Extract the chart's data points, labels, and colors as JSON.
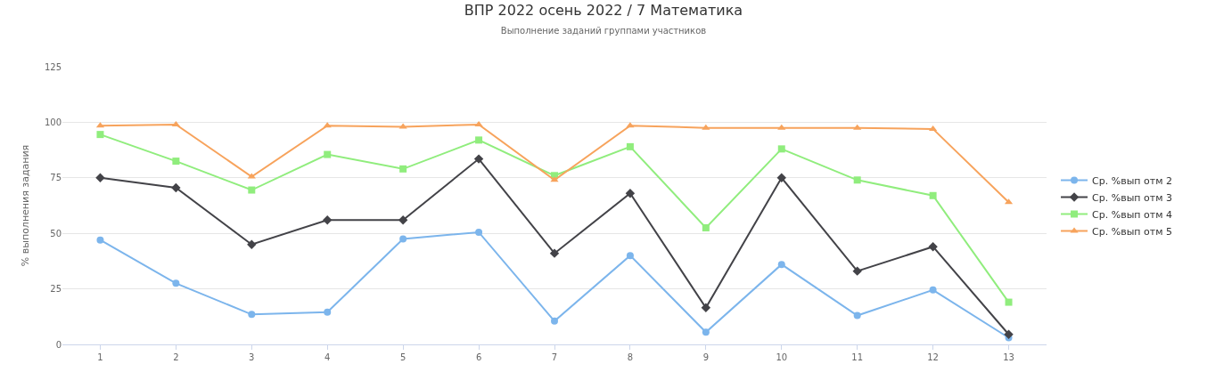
{
  "chart_data": {
    "type": "line",
    "title": "ВПР 2022 осень 2022 / 7 Математика",
    "subtitle": "Выполнение заданий группами участников",
    "ylabel": "% выполнения задания",
    "categories": [
      "1",
      "2",
      "3",
      "4",
      "5",
      "6",
      "7",
      "8",
      "9",
      "10",
      "11",
      "12",
      "13"
    ],
    "series": [
      {
        "name": "Ср. %вып отм 2",
        "color": "#7cb5ec",
        "marker": "circle",
        "values": [
          47,
          27.5,
          13.5,
          14.5,
          47.5,
          50.5,
          10.5,
          40,
          5.5,
          36,
          13,
          24.5,
          3
        ]
      },
      {
        "name": "Ср. %вып отм 3",
        "color": "#434348",
        "marker": "diamond",
        "values": [
          75,
          70.5,
          45,
          56,
          56,
          83.5,
          41,
          68,
          16.5,
          75,
          33,
          44,
          4.5
        ]
      },
      {
        "name": "Ср. %вып отм 4",
        "color": "#90ed7d",
        "marker": "square",
        "values": [
          94.5,
          82.5,
          69.5,
          85.5,
          79,
          92,
          76,
          89,
          52.5,
          88,
          74,
          67,
          19
        ]
      },
      {
        "name": "Ср. %вып отм 5",
        "color": "#f7a35c",
        "marker": "triangle",
        "values": [
          98.5,
          99,
          75.5,
          98.5,
          98,
          99,
          74,
          98.5,
          97.5,
          97.5,
          97.5,
          97,
          64
        ]
      }
    ],
    "ylim": [
      0,
      125
    ],
    "yticks": [
      0,
      25,
      50,
      75,
      100,
      125
    ],
    "grid": "y",
    "legend": "right"
  }
}
